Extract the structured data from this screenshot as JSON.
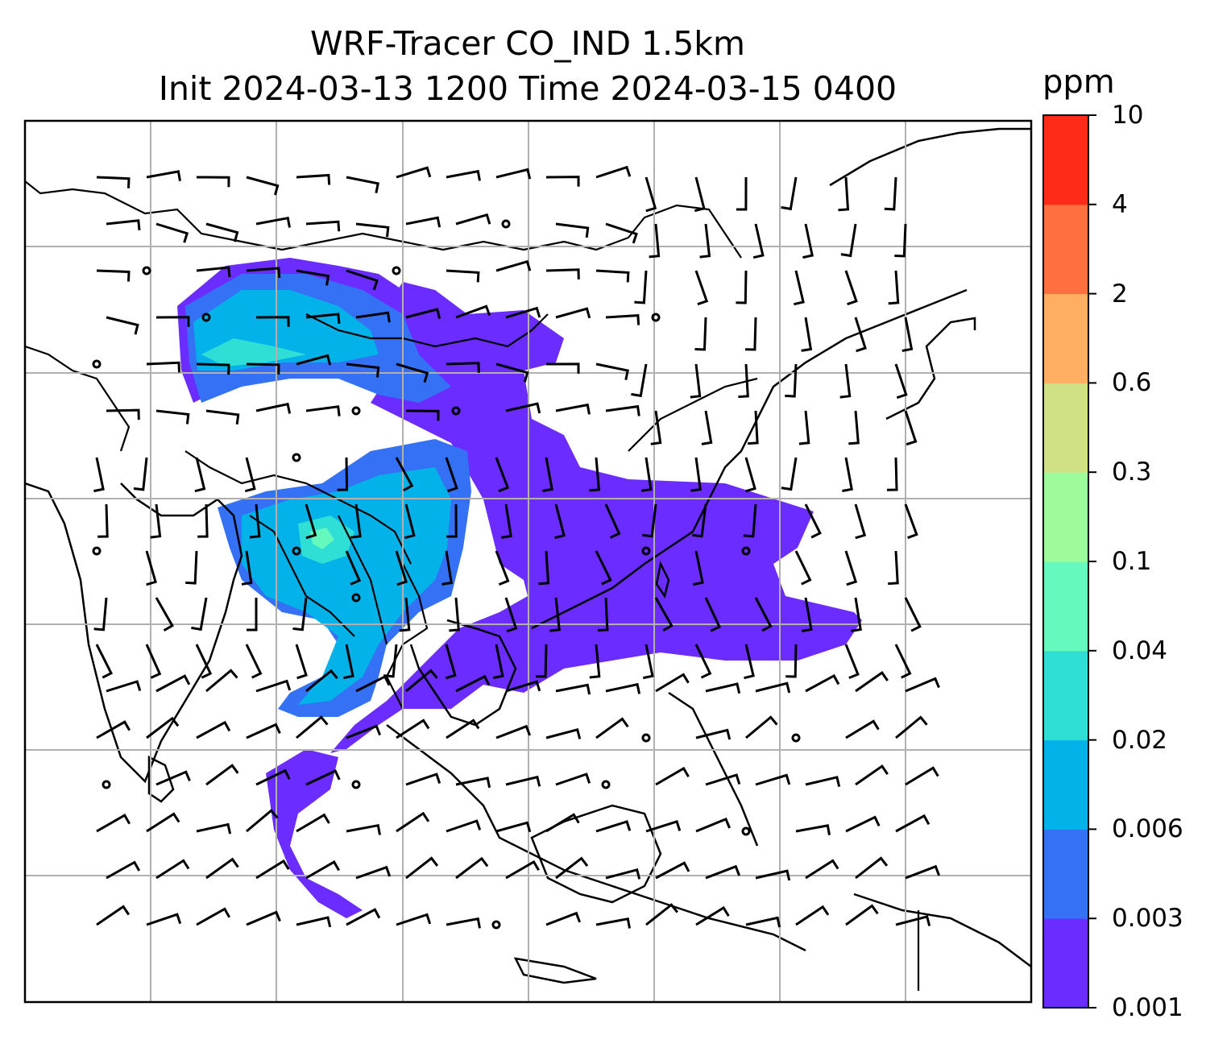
{
  "title": {
    "line1": "WRF-Tracer CO_IND 1.5km",
    "line2": "Init 2024-03-13 1200 Time 2024-03-15 0400"
  },
  "colorbar": {
    "unit": "ppm",
    "ticks": [
      "0.001",
      "0.003",
      "0.006",
      "0.02",
      "0.04",
      "0.1",
      "0.3",
      "0.6",
      "2",
      "4",
      "10"
    ],
    "colors": [
      "#6a2cff",
      "#3471f5",
      "#04b2ea",
      "#2fdfd6",
      "#66f9bd",
      "#9dfb9b",
      "#d0e085",
      "#ffae62",
      "#ff7040",
      "#ff2a17"
    ]
  },
  "map": {
    "gridlines": true,
    "features": [
      "coastlines",
      "country-borders",
      "wind-barbs",
      "tracer-concentration-fill"
    ]
  },
  "chart_data": {
    "type": "heatmap",
    "title": "WRF-Tracer CO_IND 1.5km",
    "subtitle": "Init 2024-03-13 1200 Time 2024-03-15 0400",
    "colorbar_label": "ppm",
    "levels": [
      0.001,
      0.003,
      0.006,
      0.02,
      0.04,
      0.1,
      0.3,
      0.6,
      2,
      4,
      10
    ],
    "grid": true,
    "legend_position": "right"
  }
}
